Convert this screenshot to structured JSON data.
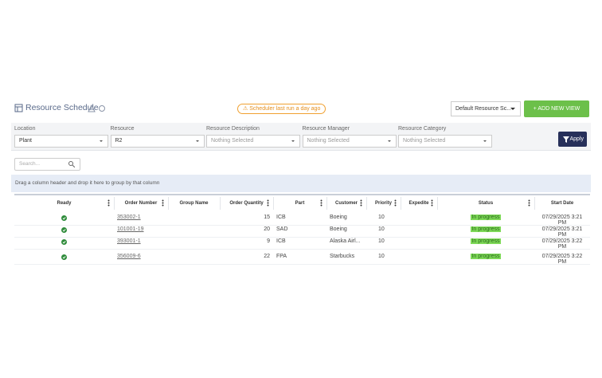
{
  "header": {
    "title": "Resource Schedule",
    "notice": "Scheduler last run a day ago",
    "view_select": "Default Resource Sc...",
    "add_button": "+ ADD NEW VIEW"
  },
  "filters": [
    {
      "label": "Location",
      "value": "Plant"
    },
    {
      "label": "Resource",
      "value": "R2"
    },
    {
      "label": "Resource Description",
      "value": "Nothing Selected"
    },
    {
      "label": "Resource Manager",
      "value": "Nothing Selected"
    },
    {
      "label": "Resource Category",
      "value": "Nothing Selected"
    }
  ],
  "apply_button": "Apply",
  "search_placeholder": "Search...",
  "group_hint": "Drag a column header and drop it here to group by that column",
  "table": {
    "columns": [
      "Ready",
      "Order Number",
      "Group Name",
      "Order Quantity",
      "Part",
      "Customer",
      "Priority",
      "Expedite",
      "Status",
      "Start Date"
    ],
    "rows": [
      {
        "order": "353002-1",
        "quantity": 15,
        "part": "ICB",
        "customer": "Boeing",
        "priority": 10,
        "status": "In progress",
        "start": "07/29/2025 3:21 PM"
      },
      {
        "order": "101001-19",
        "quantity": 20,
        "part": "SAD",
        "customer": "Boeing",
        "priority": 10,
        "status": "In progress",
        "start": "07/29/2025 3:21 PM"
      },
      {
        "order": "393001-1",
        "quantity": 9,
        "part": "ICB",
        "customer": "Alaska Airl...",
        "priority": 10,
        "status": "In progress",
        "start": "07/29/2025 3:22 PM"
      },
      {
        "order": "356009-6",
        "quantity": 22,
        "part": "FPA",
        "customer": "Starbucks",
        "priority": 10,
        "status": "In progress",
        "start": "07/29/2025 3:22 PM"
      }
    ]
  }
}
